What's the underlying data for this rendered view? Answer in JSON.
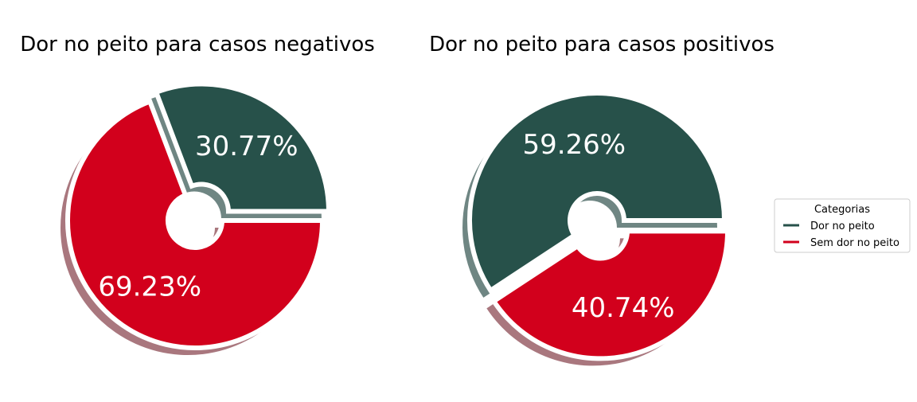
{
  "chart_data": [
    {
      "type": "pie",
      "title": "Dor no peito para casos negativos",
      "categories": [
        "Dor no peito",
        "Sem dor no peito"
      ],
      "values": [
        30.77,
        69.23
      ],
      "labels": [
        "30.77%",
        "69.23%"
      ],
      "exploded": "Dor no peito",
      "donut": true
    },
    {
      "type": "pie",
      "title": "Dor no peito para casos positivos",
      "categories": [
        "Dor no peito",
        "Sem dor no peito"
      ],
      "values": [
        59.26,
        40.74
      ],
      "labels": [
        "59.26%",
        "40.74%"
      ],
      "exploded": "Sem dor no peito",
      "donut": true
    }
  ],
  "legend": {
    "title": "Categorias",
    "placement": "right",
    "items": [
      {
        "label": "Dor no peito",
        "color": "#27514a"
      },
      {
        "label": "Sem dor no peito",
        "color": "#d2001c"
      }
    ]
  },
  "colors": {
    "Dor no peito": "#27514a",
    "Sem dor no peito": "#d2001c"
  }
}
